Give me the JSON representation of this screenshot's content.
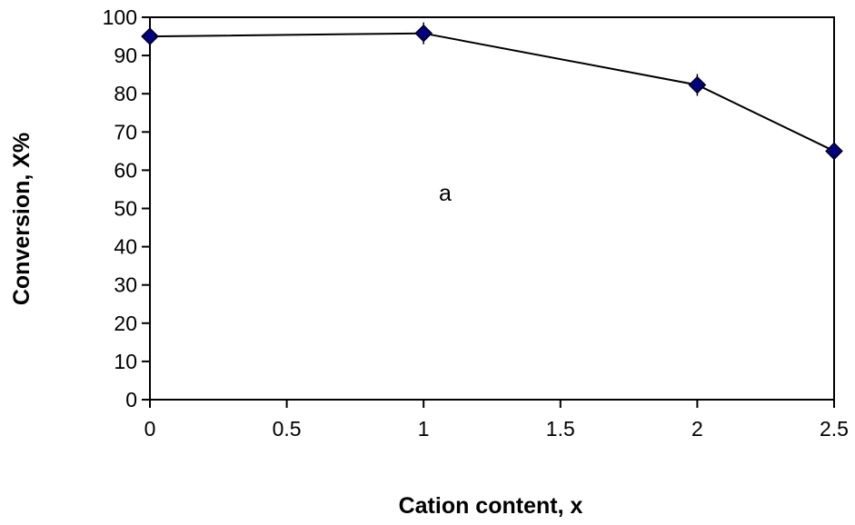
{
  "chart_data": {
    "type": "line",
    "xlabel": "Cation content, x",
    "ylabel": "Conversion,  X%",
    "annotation": "a",
    "xlim": [
      0,
      2.5
    ],
    "ylim": [
      0,
      100
    ],
    "x_ticks": [
      "0",
      "0.5",
      "1",
      "1.5",
      "2",
      "2.5"
    ],
    "y_ticks": [
      "0",
      "10",
      "20",
      "30",
      "40",
      "50",
      "60",
      "70",
      "80",
      "90",
      "100"
    ],
    "grid": false,
    "legend": "none",
    "series": [
      {
        "x": [
          0,
          1,
          2,
          2.5
        ],
        "y": [
          95,
          95.8,
          82.3,
          65
        ],
        "color": "#000080",
        "marker": "diamond",
        "line_color": "#000000"
      }
    ]
  }
}
